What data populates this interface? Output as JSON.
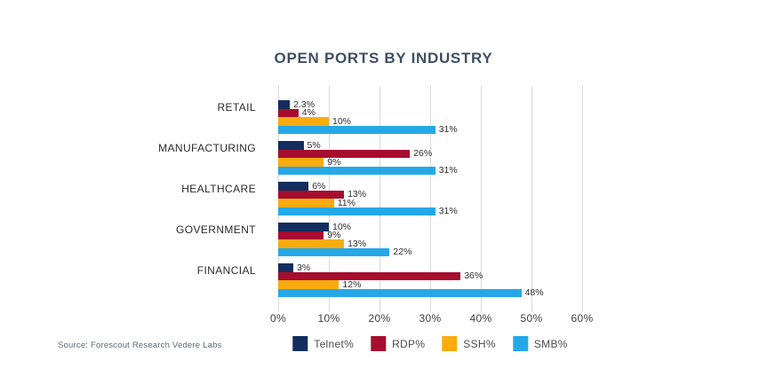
{
  "source": "Source: Forescout Research Vedere Labs",
  "chart_data": {
    "type": "bar",
    "orientation": "horizontal",
    "title": "OPEN PORTS BY INDUSTRY",
    "categories": [
      "RETAIL",
      "MANUFACTURING",
      "HEALTHCARE",
      "GOVERNMENT",
      "FINANCIAL"
    ],
    "series": [
      {
        "name": "Telnet%",
        "color": "#132E5E",
        "values": [
          2.3,
          5,
          6,
          10,
          3
        ]
      },
      {
        "name": "RDP%",
        "color": "#A60D2E",
        "values": [
          4,
          26,
          13,
          9,
          36
        ]
      },
      {
        "name": "SSH%",
        "color": "#FAAB0E",
        "values": [
          10,
          9,
          11,
          13,
          12
        ]
      },
      {
        "name": "SMB%",
        "color": "#25A8E8",
        "values": [
          31,
          31,
          31,
          22,
          48
        ]
      }
    ],
    "value_label_suffix": "%",
    "x_ticks": [
      "0%",
      "10%",
      "20%",
      "30%",
      "40%",
      "50%",
      "60%"
    ],
    "xlim": [
      0,
      60
    ],
    "grid": "vertical",
    "legend_position": "bottom",
    "gridline_color": "#D9D9D9",
    "title_color": "#3E5063"
  }
}
